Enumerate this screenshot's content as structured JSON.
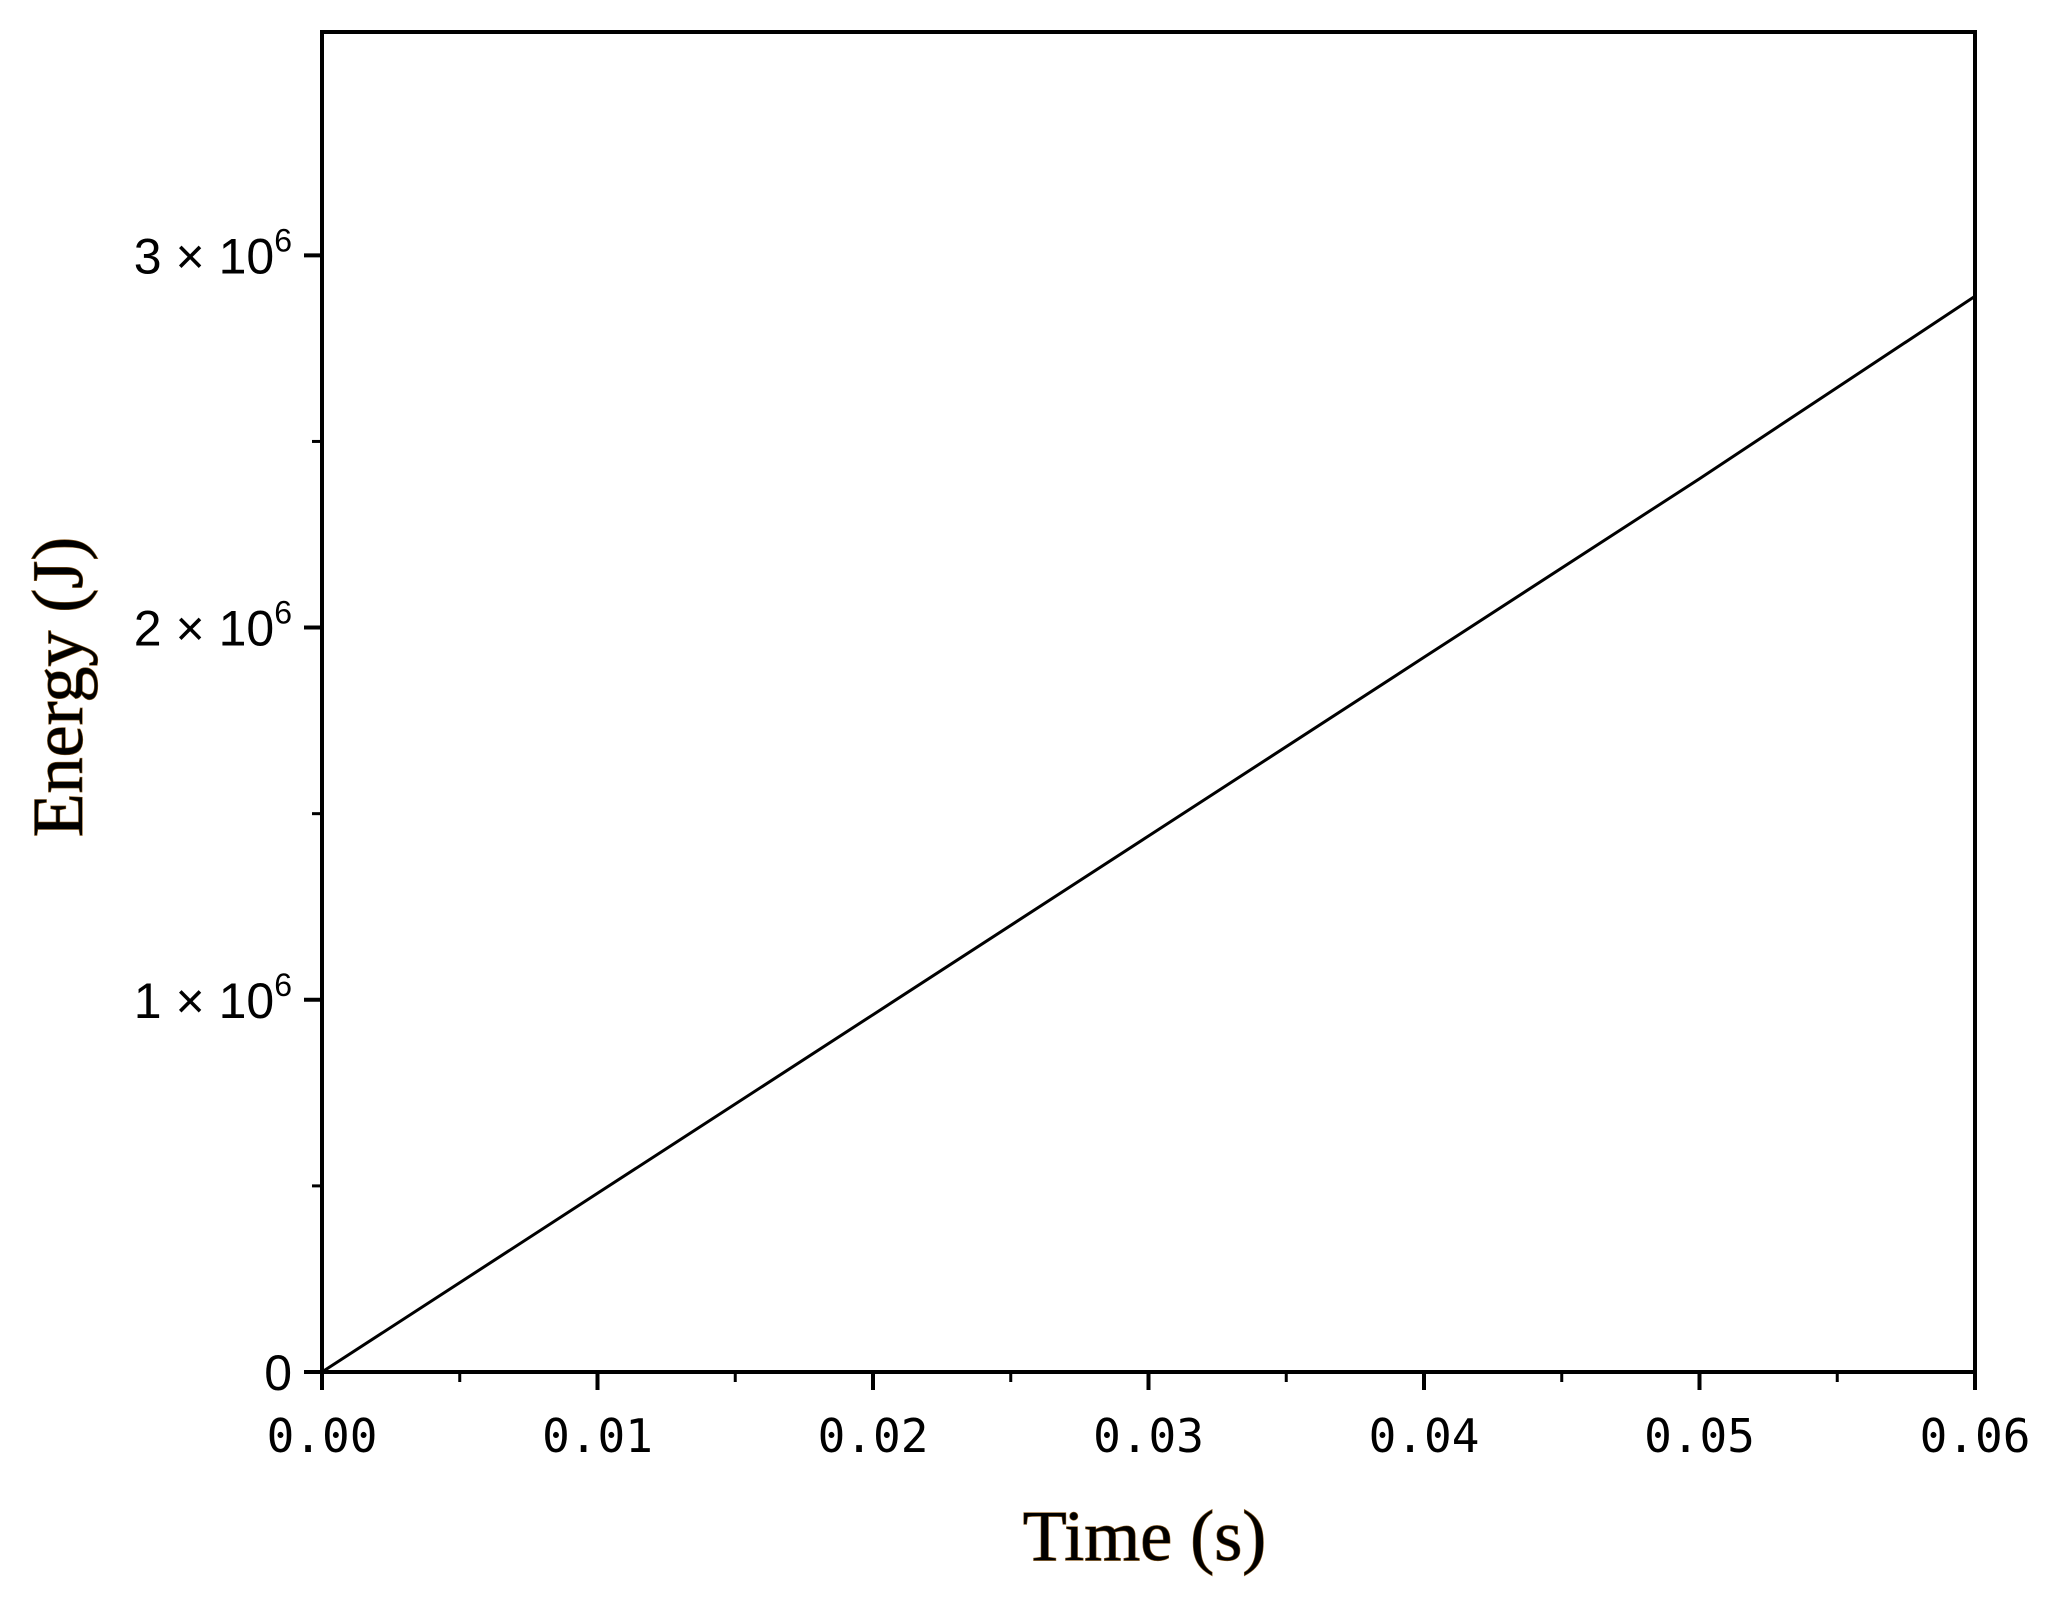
{
  "chart_data": {
    "type": "line",
    "title": "",
    "xlabel": "Time (s)",
    "ylabel": "Energy (J)",
    "xlim": [
      0,
      0.06
    ],
    "ylim": [
      0,
      3600000.0
    ],
    "x_ticks": [
      0.0,
      0.01,
      0.02,
      0.03,
      0.04,
      0.05,
      0.06
    ],
    "x_tick_labels": [
      "0.00",
      "0.01",
      "0.02",
      "0.03",
      "0.04",
      "0.05",
      "0.06"
    ],
    "y_ticks": [
      0,
      1000000,
      2000000,
      3000000
    ],
    "y_tick_labels": [
      {
        "base": "0",
        "exp": ""
      },
      {
        "base": "1 × 10",
        "exp": "6"
      },
      {
        "base": "2 × 10",
        "exp": "6"
      },
      {
        "base": "3 × 10",
        "exp": "6"
      }
    ],
    "y_minor_ticks": [
      500000,
      1500000,
      2500000
    ],
    "x_minor_ticks": [
      0.005,
      0.015,
      0.025,
      0.035,
      0.045,
      0.055
    ],
    "grid": false,
    "colors": {
      "line": "#000000",
      "axis_title": "#8a5a1e"
    },
    "series": [
      {
        "x": [
          0.0,
          0.01,
          0.02,
          0.03,
          0.04,
          0.05,
          0.06
        ],
        "y": [
          0,
          480000,
          960000,
          1440000,
          1920000,
          2400000,
          2890000
        ]
      }
    ]
  }
}
